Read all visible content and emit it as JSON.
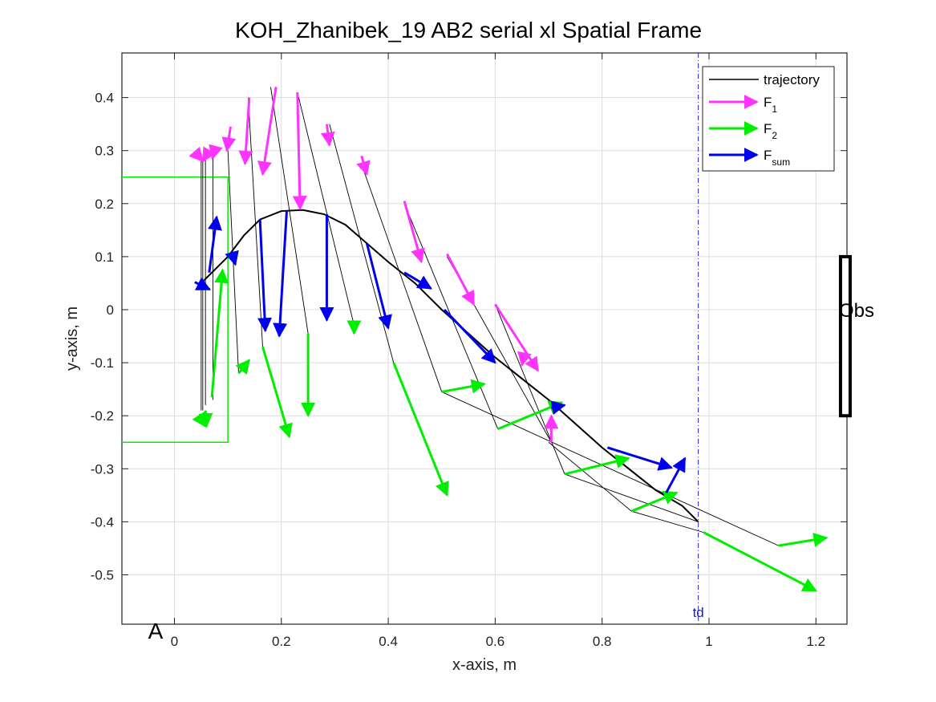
{
  "chart_data": {
    "type": "line",
    "title": "KOH_Zhanibek_19    AB2    serial    xl  Spatial Frame",
    "xlabel": "x-axis, m",
    "ylabel": "y-axis, m",
    "xlim": [
      -0.1,
      1.26
    ],
    "ylim": [
      -0.59,
      0.48
    ],
    "grid": true,
    "x_ticks": [
      "0",
      "0.2",
      "0.4",
      "0.6",
      "0.8",
      "1",
      "1.2"
    ],
    "x_tick_values": [
      0,
      0.2,
      0.4,
      0.6,
      0.8,
      1.0,
      1.2
    ],
    "y_ticks": [
      "0.4",
      "0.3",
      "0.2",
      "0.1",
      "0",
      "-0.1",
      "-0.2",
      "-0.3",
      "-0.4",
      "-0.5"
    ],
    "y_tick_values": [
      0.4,
      0.3,
      0.2,
      0.1,
      0,
      -0.1,
      -0.2,
      -0.3,
      -0.4,
      -0.5
    ],
    "legend": {
      "placement": "top-right",
      "entries": [
        {
          "label": "trajectory",
          "sub": "",
          "color": "#000000"
        },
        {
          "label": "F",
          "sub": "1",
          "color": "#ff33ff"
        },
        {
          "label": "F",
          "sub": "2",
          "color": "#00ee00"
        },
        {
          "label": "F",
          "sub": "sum",
          "color": "#0000ee"
        }
      ]
    },
    "annotations": {
      "panel_label": "A",
      "td_label": "td",
      "td_x": 0.98,
      "obs_label": "Obs",
      "obs_x": 1.255,
      "obs_y": [
        -0.2,
        0.1
      ],
      "start_box": {
        "x": [
          -0.1,
          0.1
        ],
        "y": [
          -0.25,
          0.25
        ]
      }
    },
    "trajectory": {
      "x": [
        0.05,
        0.07,
        0.1,
        0.13,
        0.16,
        0.2,
        0.24,
        0.28,
        0.32,
        0.36,
        0.4,
        0.45,
        0.5,
        0.55,
        0.6,
        0.65,
        0.7,
        0.75,
        0.8,
        0.85,
        0.9,
        0.95,
        0.98
      ],
      "y": [
        0.05,
        0.07,
        0.1,
        0.14,
        0.17,
        0.186,
        0.188,
        0.18,
        0.16,
        0.125,
        0.09,
        0.05,
        0.0,
        -0.045,
        -0.09,
        -0.13,
        -0.17,
        -0.215,
        -0.26,
        -0.3,
        -0.34,
        -0.37,
        -0.4
      ]
    },
    "series": [
      {
        "name": "F_1",
        "color": "#ff33ff",
        "vectors": [
          [
            0.04,
            0.295,
            0.053,
            0.28
          ],
          [
            0.062,
            0.295,
            0.053,
            0.28
          ],
          [
            0.075,
            0.3,
            0.071,
            0.285
          ],
          [
            0.105,
            0.345,
            0.098,
            0.3
          ],
          [
            0.14,
            0.4,
            0.132,
            0.275
          ],
          [
            0.19,
            0.42,
            0.165,
            0.255
          ],
          [
            0.23,
            0.41,
            0.235,
            0.19
          ],
          [
            0.285,
            0.35,
            0.29,
            0.31
          ],
          [
            0.35,
            0.29,
            0.36,
            0.255
          ],
          [
            0.43,
            0.205,
            0.462,
            0.09
          ],
          [
            0.51,
            0.105,
            0.56,
            0.01
          ],
          [
            0.6,
            0.01,
            0.68,
            -0.115
          ],
          [
            0.653,
            -0.09,
            0.65,
            -0.105
          ],
          [
            0.705,
            -0.25,
            0.705,
            -0.2
          ]
        ]
      },
      {
        "name": "F_2",
        "color": "#00ee00",
        "vectors": [
          [
            0.045,
            -0.2,
            0.058,
            -0.22
          ],
          [
            0.058,
            -0.19,
            0.06,
            -0.22
          ],
          [
            0.07,
            -0.165,
            0.09,
            0.075
          ],
          [
            0.12,
            -0.12,
            0.14,
            -0.095
          ],
          [
            0.165,
            -0.07,
            0.215,
            -0.24
          ],
          [
            0.25,
            -0.045,
            0.25,
            -0.2
          ],
          [
            0.336,
            -0.025,
            0.336,
            -0.045
          ],
          [
            0.41,
            -0.1,
            0.51,
            -0.35
          ],
          [
            0.5,
            -0.155,
            0.58,
            -0.14
          ],
          [
            0.605,
            -0.225,
            0.725,
            -0.175
          ],
          [
            0.73,
            -0.31,
            0.85,
            -0.28
          ],
          [
            0.855,
            -0.38,
            0.94,
            -0.345
          ],
          [
            0.99,
            -0.42,
            1.2,
            -0.53
          ],
          [
            1.13,
            -0.445,
            1.22,
            -0.43
          ]
        ]
      },
      {
        "name": "F_sum",
        "color": "#0000ee",
        "vectors": [
          [
            0.038,
            0.052,
            0.066,
            0.038
          ],
          [
            0.065,
            0.07,
            0.079,
            0.175
          ],
          [
            0.107,
            0.11,
            0.114,
            0.085
          ],
          [
            0.16,
            0.17,
            0.17,
            -0.04
          ],
          [
            0.21,
            0.186,
            0.196,
            -0.05
          ],
          [
            0.285,
            0.18,
            0.285,
            -0.02
          ],
          [
            0.36,
            0.125,
            0.4,
            -0.035
          ],
          [
            0.43,
            0.07,
            0.48,
            0.04
          ],
          [
            0.505,
            0.0,
            0.6,
            -0.1
          ],
          [
            0.705,
            -0.185,
            0.73,
            -0.18
          ],
          [
            0.81,
            -0.26,
            0.93,
            -0.298
          ],
          [
            0.92,
            -0.345,
            0.955,
            -0.28
          ]
        ]
      },
      {
        "name": "link_lines",
        "color": "#000000",
        "segments": [
          [
            0.05,
            0.28,
            0.05,
            -0.19
          ],
          [
            0.053,
            0.28,
            0.053,
            -0.19
          ],
          [
            0.058,
            0.285,
            0.058,
            -0.18
          ],
          [
            0.072,
            0.285,
            0.072,
            -0.17
          ],
          [
            0.1,
            0.3,
            0.12,
            -0.12
          ],
          [
            0.138,
            0.4,
            0.165,
            -0.07
          ],
          [
            0.18,
            0.42,
            0.25,
            -0.045
          ],
          [
            0.23,
            0.41,
            0.335,
            -0.025
          ],
          [
            0.29,
            0.35,
            0.41,
            -0.1
          ],
          [
            0.355,
            0.26,
            0.5,
            -0.155
          ],
          [
            0.43,
            0.2,
            0.605,
            -0.225
          ],
          [
            0.51,
            0.1,
            0.705,
            -0.25
          ],
          [
            0.6,
            0.01,
            0.73,
            -0.31
          ],
          [
            0.7,
            -0.25,
            0.855,
            -0.38
          ],
          [
            0.73,
            -0.31,
            0.98,
            -0.4
          ],
          [
            0.855,
            -0.38,
            0.99,
            -0.42
          ],
          [
            0.5,
            -0.155,
            1.13,
            -0.445
          ]
        ]
      }
    ]
  }
}
